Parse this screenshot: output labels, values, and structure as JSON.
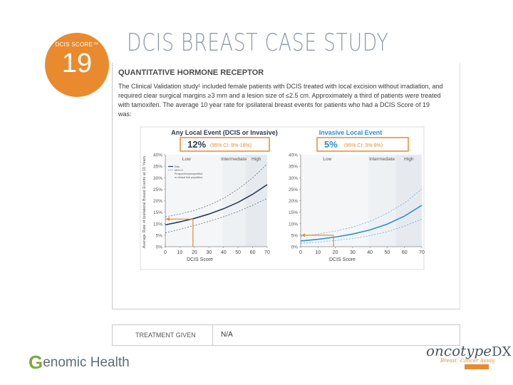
{
  "badge": {
    "label": "DCIS SCORE™",
    "value": "19"
  },
  "title": "DCIS BREAST CASE STUDY",
  "subheading": "QUANTITATIVE HORMONE RECEPTOR",
  "paragraph": "The Clinical Validation study¹ included female patients with DCIS treated with local excision without irradiation, and required clear surgical margins ≥3 mm and a lesion size of ≤2.5 cm. Approximately a third of patients were treated with tamoxifen. The average 10 year rate for ipsilateral breast events for patients who had a DCIS Score of 19 was:",
  "colors": {
    "accent": "#e98a2e",
    "blue": "#2a8fd6",
    "navy": "#2b3a55",
    "gray": "#8e9aa6"
  },
  "chart_data": [
    {
      "type": "line",
      "title": "Any Local Event (DCIS or Invasive)",
      "result": "12%",
      "ci": "(95% CI: 9%-16%)",
      "xlabel": "DCIS Score",
      "ylabel": "Average Rate of Ipsilateral Breast Events at 10 Years",
      "x_ticks": [
        "0",
        "10",
        "20",
        "30",
        "40",
        "50",
        "60",
        "70"
      ],
      "y_ticks": [
        "0%",
        "5%",
        "10%",
        "15%",
        "20%",
        "25%",
        "30%",
        "35%",
        "40%"
      ],
      "xlim": [
        0,
        70
      ],
      "ylim": [
        0,
        40
      ],
      "risk_groups": [
        "Low",
        "Intermediate",
        "High"
      ],
      "risk_boundaries": [
        39,
        55
      ],
      "legend": [
        "Risk",
        "95% CI",
        "Prospective/prespecified",
        "or clinical trial population"
      ],
      "highlight": {
        "x": 19,
        "y": 12
      },
      "series": [
        {
          "name": "Risk",
          "x": [
            0,
            10,
            20,
            30,
            40,
            50,
            60,
            70
          ],
          "values": [
            9.5,
            10.8,
            12.3,
            14.2,
            16.5,
            19.3,
            22.8,
            27
          ]
        },
        {
          "name": "95% CI",
          "x": [
            0,
            10,
            20,
            30,
            40,
            50,
            60,
            70
          ],
          "values": [
            6,
            7.5,
            9.2,
            11,
            13,
            15.3,
            18,
            21
          ]
        },
        {
          "name": "95% CI",
          "x": [
            0,
            10,
            20,
            30,
            40,
            50,
            60,
            70
          ],
          "values": [
            13,
            14.2,
            15.8,
            18,
            21,
            25,
            30,
            36
          ]
        }
      ]
    },
    {
      "type": "line",
      "title": "Invasive Local Event",
      "result": "5%",
      "ci": "(95% CI: 3%-9%)",
      "xlabel": "DCIS Score",
      "ylabel": "",
      "x_ticks": [
        "0",
        "10",
        "20",
        "30",
        "40",
        "50",
        "60",
        "70"
      ],
      "y_ticks": [
        "0%",
        "5%",
        "10%",
        "15%",
        "20%",
        "25%",
        "30%",
        "35%",
        "40%"
      ],
      "xlim": [
        0,
        70
      ],
      "ylim": [
        0,
        40
      ],
      "risk_groups": [
        "Low",
        "Intermediate",
        "High"
      ],
      "risk_boundaries": [
        39,
        55
      ],
      "highlight": {
        "x": 19,
        "y": 5
      },
      "series": [
        {
          "name": "Risk",
          "x": [
            0,
            10,
            20,
            30,
            40,
            50,
            60,
            70
          ],
          "values": [
            2.5,
            3.2,
            4.2,
            5.5,
            7.3,
            9.8,
            13.3,
            18
          ]
        },
        {
          "name": "95% CI",
          "x": [
            0,
            10,
            20,
            30,
            40,
            50,
            60,
            70
          ],
          "values": [
            1.5,
            2,
            2.7,
            3.6,
            4.8,
            6.5,
            9,
            12
          ]
        },
        {
          "name": "95% CI",
          "x": [
            0,
            10,
            20,
            30,
            40,
            50,
            60,
            70
          ],
          "values": [
            4.5,
            5.5,
            6.8,
            8.5,
            11,
            14.5,
            19,
            25
          ]
        }
      ]
    }
  ],
  "treatment": {
    "label": "TREATMENT GIVEN",
    "value": "N/A"
  },
  "footer": {
    "left_logo_text": "enomic Health",
    "left_logo_g": "G",
    "right_logo_1": "onco",
    "right_logo_2": "type",
    "right_logo_3": "DX",
    "right_sub_1": "Breast",
    "right_sub_2": "Cancer Assay"
  }
}
